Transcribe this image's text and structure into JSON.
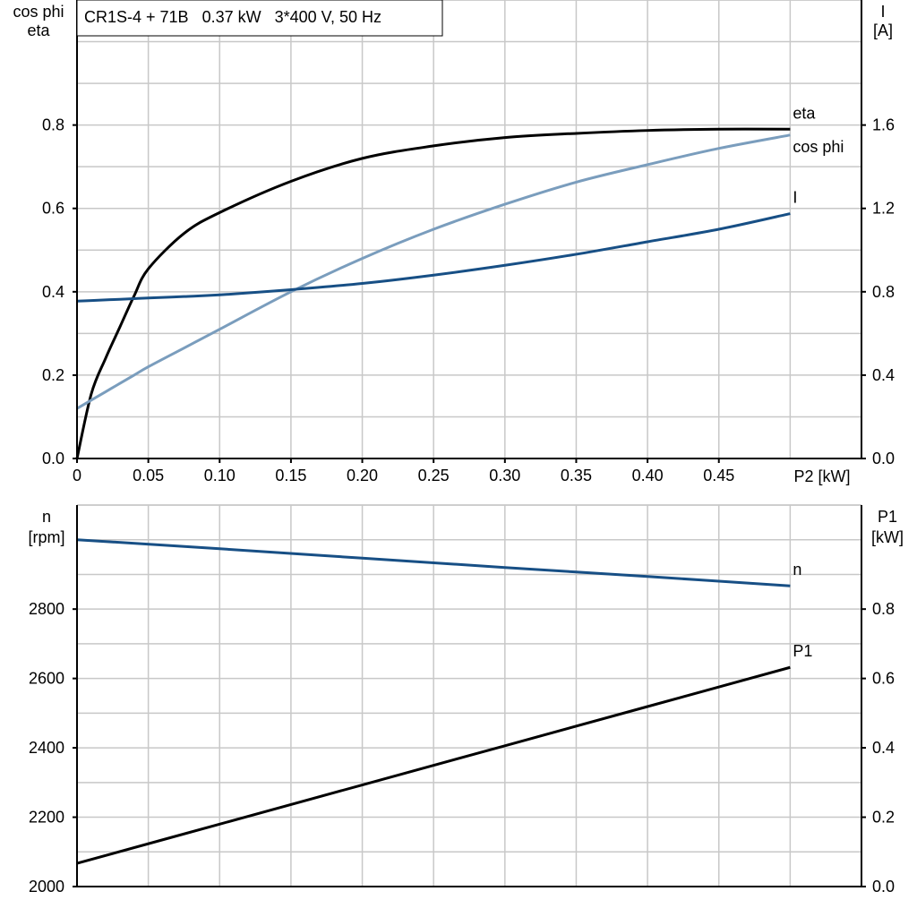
{
  "chart_data": [
    {
      "type": "line",
      "title": "CR1S-4 + 71B   0.37 kW   3*400 V, 50 Hz",
      "xlabel": "P2 [kW]",
      "ylabel": [
        "cos phi",
        "eta"
      ],
      "ylabel_right": [
        "I",
        "[A]"
      ],
      "xlim": [
        0,
        0.55
      ],
      "ylim": [
        0,
        1.1
      ],
      "ylim_right": [
        0,
        2.2
      ],
      "grid": true,
      "x_ticks": [
        "0",
        "0.05",
        "0.10",
        "0.15",
        "0.20",
        "0.25",
        "0.30",
        "0.35",
        "0.40",
        "0.45"
      ],
      "y_ticks": [
        "0.0",
        "0.2",
        "0.4",
        "0.6",
        "0.8"
      ],
      "y_ticks_right": [
        "0.0",
        "0.4",
        "0.8",
        "1.2",
        "1.6"
      ],
      "x": [
        0,
        0.01,
        0.02,
        0.03,
        0.04,
        0.05,
        0.075,
        0.1,
        0.15,
        0.2,
        0.25,
        0.3,
        0.35,
        0.4,
        0.45,
        0.5
      ],
      "series": [
        {
          "name": "eta",
          "axis": "left",
          "color": "#000000",
          "values": [
            0,
            0.155,
            0.24,
            0.315,
            0.39,
            0.455,
            0.54,
            0.59,
            0.665,
            0.72,
            0.75,
            0.77,
            0.78,
            0.787,
            0.79,
            0.79
          ]
        },
        {
          "name": "cos phi",
          "axis": "left",
          "color": "#7a9dbd",
          "values": [
            0.12,
            0.14,
            0.16,
            0.18,
            0.2,
            0.22,
            0.265,
            0.31,
            0.4,
            0.48,
            0.55,
            0.61,
            0.663,
            0.705,
            0.744,
            0.776
          ]
        },
        {
          "name": "I",
          "axis": "right",
          "color": "#174f85",
          "values": [
            0.755,
            0.758,
            0.761,
            0.764,
            0.767,
            0.77,
            0.777,
            0.785,
            0.81,
            0.84,
            0.88,
            0.927,
            0.98,
            1.04,
            1.1,
            1.175
          ]
        }
      ]
    },
    {
      "type": "line",
      "xlim": [
        0,
        0.55
      ],
      "ylabel": [
        "n",
        "[rpm]"
      ],
      "ylabel_right": [
        "P1",
        "[kW]"
      ],
      "ylim": [
        2000,
        3100
      ],
      "ylim_right": [
        0,
        1.1
      ],
      "grid": true,
      "y_ticks": [
        "2000",
        "2200",
        "2400",
        "2600",
        "2800"
      ],
      "y_ticks_right": [
        "0.0",
        "0.2",
        "0.4",
        "0.6",
        "0.8"
      ],
      "x": [
        0,
        0.1,
        0.2,
        0.3,
        0.4,
        0.5
      ],
      "series": [
        {
          "name": "n",
          "axis": "left",
          "color": "#174f85",
          "values": [
            3000,
            2974,
            2947,
            2920,
            2894,
            2867
          ]
        },
        {
          "name": "P1",
          "axis": "right",
          "color": "#000000",
          "values": [
            0.067,
            0.18,
            0.293,
            0.406,
            0.519,
            0.632
          ]
        }
      ]
    }
  ]
}
